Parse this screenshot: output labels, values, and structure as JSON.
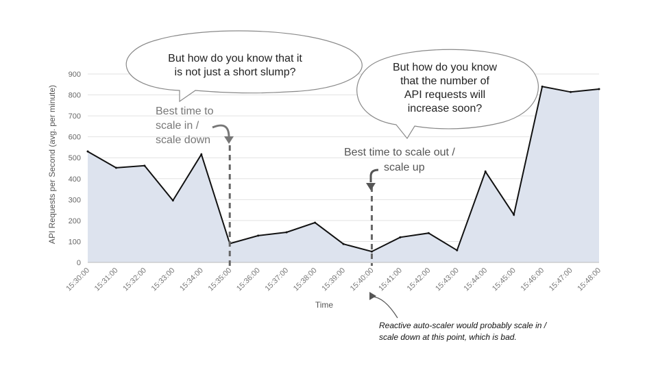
{
  "chart_data": {
    "type": "area",
    "xlabel": "Time",
    "ylabel": "API Requests per Second (avg. per minute)",
    "ylim": [
      0,
      900
    ],
    "yticks": [
      0,
      100,
      200,
      300,
      400,
      500,
      600,
      700,
      800,
      900
    ],
    "grid": true,
    "categories": [
      "15:30:00",
      "15:31:00",
      "15:32:00",
      "15:33:00",
      "15:34:00",
      "15:35:00",
      "15:36:00",
      "15:37:00",
      "15:38:00",
      "15:39:00",
      "15:40:00",
      "15:41:00",
      "15:42:00",
      "15:43:00",
      "15:44:00",
      "15:45:00",
      "15:46:00",
      "15:47:00",
      "15:48:00"
    ],
    "values": [
      530,
      452,
      462,
      296,
      516,
      90,
      128,
      144,
      190,
      88,
      52,
      120,
      140,
      58,
      434,
      228,
      840,
      814,
      828
    ],
    "colors": {
      "line": "#111111",
      "fill": "#dde3ee",
      "grid": "#e2e2e2",
      "marker": "#666666"
    }
  },
  "annotations": {
    "bubble_left": [
      "But how do you know that it",
      "is not just a short slump?"
    ],
    "bubble_right": [
      "But how do you know",
      "that the number of",
      "API requests will",
      "increase soon?"
    ],
    "scale_in": [
      "Best time to",
      "scale in /",
      "scale down"
    ],
    "scale_out": [
      "Best time to scale out /",
      "scale up"
    ],
    "note": [
      "Reactive auto-scaler would probably scale in /",
      "scale down at this point, which is bad."
    ]
  }
}
